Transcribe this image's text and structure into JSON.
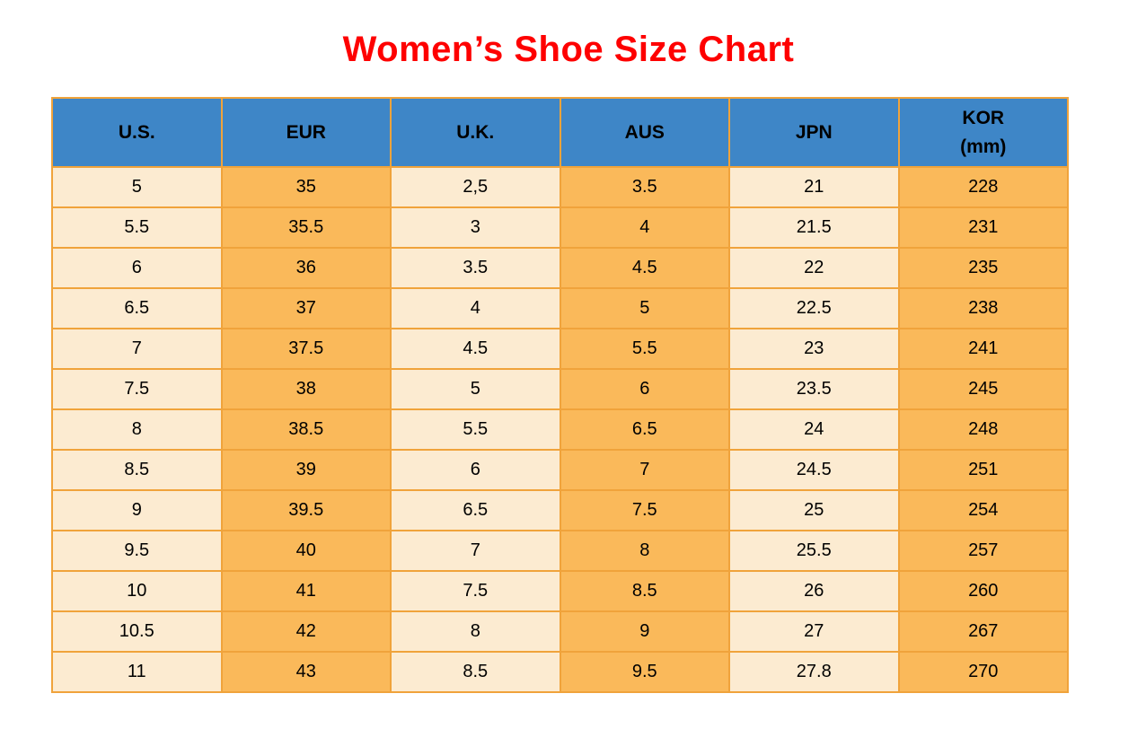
{
  "page": {
    "title": "Women’s Shoe Size Chart"
  },
  "colors": {
    "title_red": "#fe0000",
    "header_blue": "#3e86c7",
    "cell_cream": "#fcebd1",
    "cell_orange": "#fab95a",
    "border_orange": "#f0a33b",
    "text_black": "#000000",
    "page_background": "#ffffff"
  },
  "table": {
    "header_display": [
      "U.S.",
      "EUR",
      "U.K.",
      "AUS",
      "JPN",
      "KOR\n(mm)"
    ]
  },
  "chart_data": {
    "type": "table",
    "title": "Women’s Shoe Size Chart",
    "columns": [
      "U.S.",
      "EUR",
      "U.K.",
      "AUS",
      "JPN",
      "KOR (mm)"
    ],
    "rows": [
      [
        "5",
        "35",
        "2,5",
        "3.5",
        "21",
        "228"
      ],
      [
        "5.5",
        "35.5",
        "3",
        "4",
        "21.5",
        "231"
      ],
      [
        "6",
        "36",
        "3.5",
        "4.5",
        "22",
        "235"
      ],
      [
        "6.5",
        "37",
        "4",
        "5",
        "22.5",
        "238"
      ],
      [
        "7",
        "37.5",
        "4.5",
        "5.5",
        "23",
        "241"
      ],
      [
        "7.5",
        "38",
        "5",
        "6",
        "23.5",
        "245"
      ],
      [
        "8",
        "38.5",
        "5.5",
        "6.5",
        "24",
        "248"
      ],
      [
        "8.5",
        "39",
        "6",
        "7",
        "24.5",
        "251"
      ],
      [
        "9",
        "39.5",
        "6.5",
        "7.5",
        "25",
        "254"
      ],
      [
        "9.5",
        "40",
        "7",
        "8",
        "25.5",
        "257"
      ],
      [
        "10",
        "41",
        "7.5",
        "8.5",
        "26",
        "260"
      ],
      [
        "10.5",
        "42",
        "8",
        "9",
        "27",
        "267"
      ],
      [
        "11",
        "43",
        "8.5",
        "9.5",
        "27.8",
        "270"
      ]
    ],
    "layout": {
      "column_fill_pattern": [
        "cream",
        "orange",
        "cream",
        "orange",
        "cream",
        "orange"
      ],
      "header_fill": "blue",
      "grid": true
    }
  }
}
